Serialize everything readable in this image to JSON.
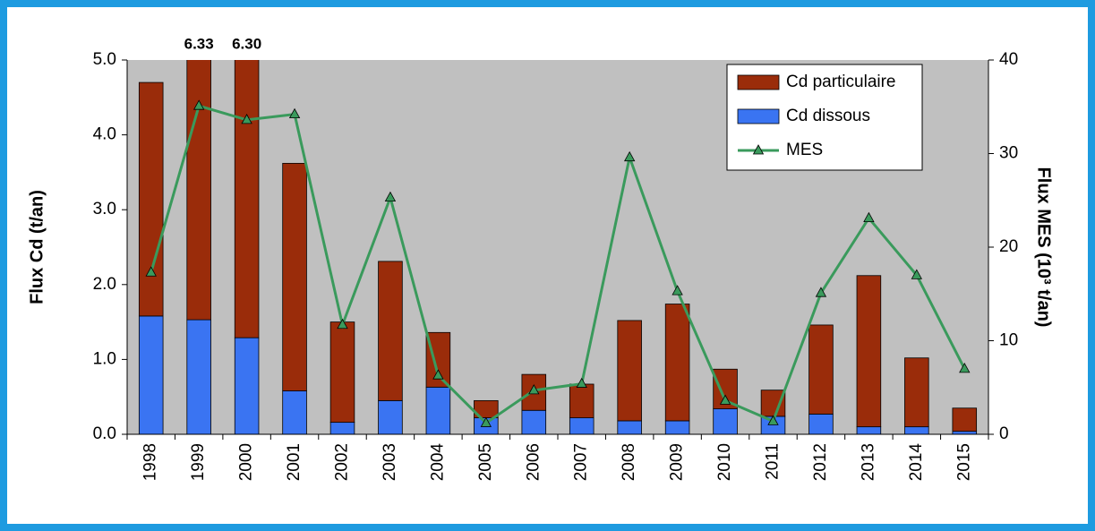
{
  "chart_data": {
    "type": "bar",
    "y_label": "Flux Cd (t/an)",
    "y2_label": "Flux MES (10³ t/an)",
    "categories": [
      "1998",
      "1999",
      "2000",
      "2001",
      "2002",
      "2003",
      "2004",
      "2005",
      "2006",
      "2007",
      "2008",
      "2009",
      "2010",
      "2011",
      "2012",
      "2013",
      "2014",
      "2015"
    ],
    "stacked": true,
    "series": [
      {
        "name": "Cd dissous",
        "color": "#3a74f2",
        "type": "bar",
        "values": [
          1.58,
          1.53,
          1.29,
          0.58,
          0.16,
          0.45,
          0.63,
          0.22,
          0.32,
          0.22,
          0.18,
          0.18,
          0.34,
          0.24,
          0.27,
          0.1,
          0.1,
          0.04
        ]
      },
      {
        "name": "Cd particulaire",
        "color": "#9a2c0a",
        "type": "bar",
        "values": [
          3.12,
          4.8,
          5.01,
          3.04,
          1.34,
          1.86,
          0.73,
          0.23,
          0.48,
          0.45,
          1.34,
          1.56,
          0.53,
          0.35,
          1.19,
          2.02,
          0.92,
          0.31
        ]
      },
      {
        "name": "MES",
        "color": "#3a9a5c",
        "type": "line",
        "axis": "y2",
        "values": [
          17.3,
          35.1,
          33.6,
          34.2,
          11.7,
          25.3,
          6.3,
          1.2,
          4.7,
          5.4,
          29.6,
          15.3,
          3.6,
          1.4,
          15.1,
          23.1,
          17.0,
          7.0
        ]
      }
    ],
    "legend_order": [
      "Cd particulaire",
      "Cd dissous",
      "MES"
    ],
    "legend_position": "top-right",
    "annotations": [
      {
        "text": "6.33",
        "category": "1999"
      },
      {
        "text": "6.30",
        "category": "2000"
      }
    ],
    "ylim": [
      0,
      5
    ],
    "yticks": [
      {
        "value": 0,
        "label": "0.0"
      },
      {
        "value": 1,
        "label": "1.0"
      },
      {
        "value": 2,
        "label": "2.0"
      },
      {
        "value": 3,
        "label": "3.0"
      },
      {
        "value": 4,
        "label": "4.0"
      },
      {
        "value": 5,
        "label": "5.0"
      }
    ],
    "y2lim": [
      0,
      40
    ],
    "y2ticks": [
      0,
      10,
      20,
      30,
      40
    ],
    "grid": false,
    "plot_background": "#c0c0c0"
  }
}
